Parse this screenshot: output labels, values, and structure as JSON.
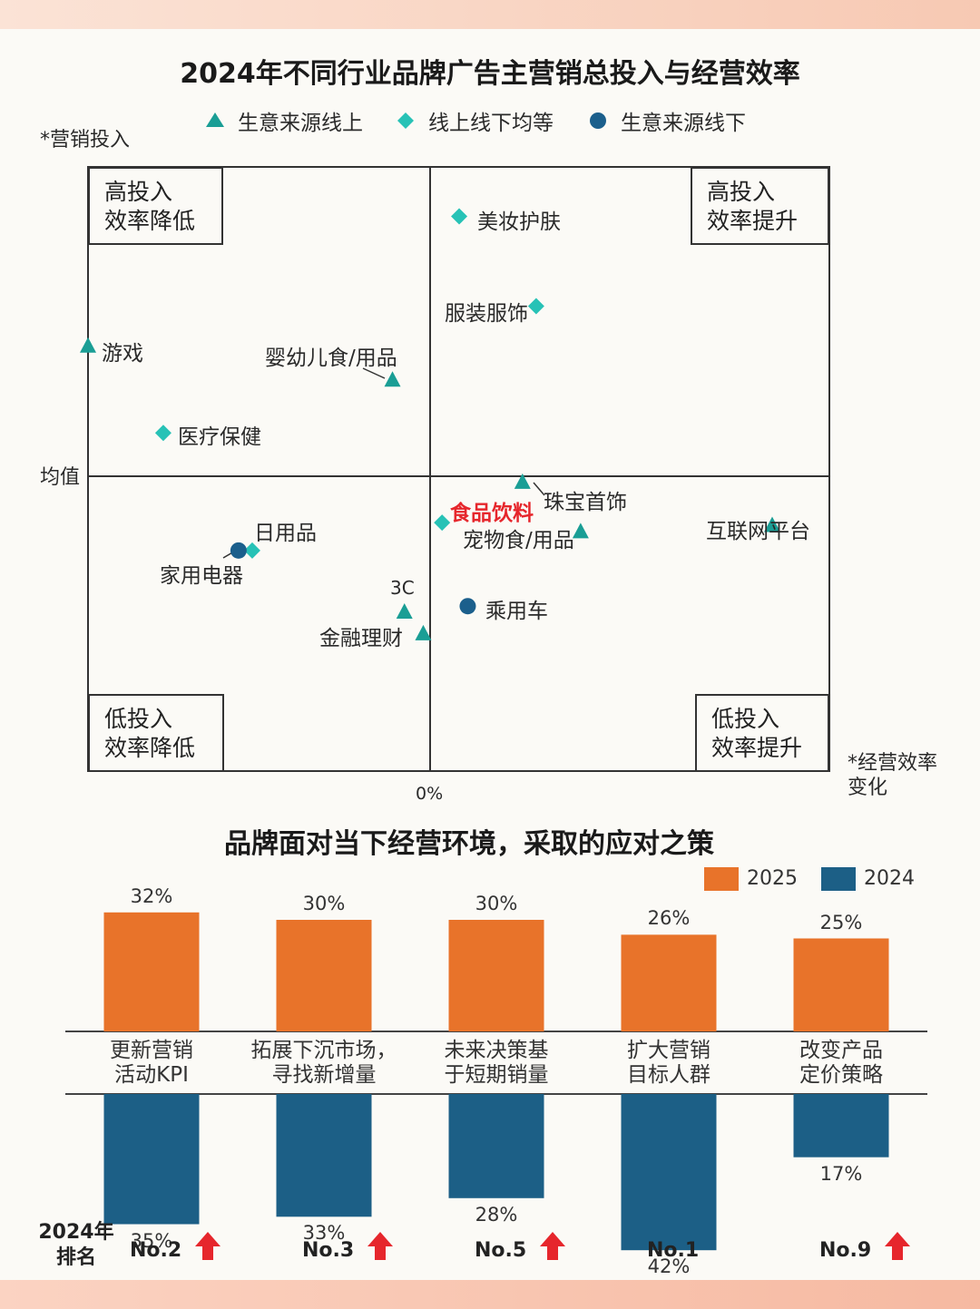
{
  "colors": {
    "teal": "#1a9e95",
    "cyan": "#27c2b6",
    "navy": "#1b5f8c",
    "orange": "#e8732a",
    "bar_blue": "#1c5f86",
    "red": "#e6262c"
  },
  "scatter": {
    "title": "2024年不同行业品牌广告主营销总投入与经营效率",
    "ylabel": "*营销投入",
    "xlabel": "*经营效率变化",
    "xlabel_line1": "*经营效率",
    "xlabel_line2": "变化",
    "y_mid_label": "均值",
    "x_zero_label": "0%",
    "legend": [
      {
        "name": "生意来源线上",
        "marker": "triangle",
        "color": "#1a9e95"
      },
      {
        "name": "线上线下均等",
        "marker": "diamond",
        "color": "#27c2b6"
      },
      {
        "name": "生意来源线下",
        "marker": "circle",
        "color": "#1b5f8c"
      }
    ],
    "quadrants": {
      "tl": [
        "高投入",
        "效率降低"
      ],
      "tr": [
        "高投入",
        "效率提升"
      ],
      "bl": [
        "低投入",
        "效率降低"
      ],
      "br": [
        "低投入",
        "效率提升"
      ]
    }
  },
  "bars": {
    "title": "品牌面对当下经营环境，采取的应对之策",
    "legend": [
      {
        "name": "2025",
        "color": "#e8732a"
      },
      {
        "name": "2024",
        "color": "#1c5f86"
      }
    ],
    "rank_title_1": "2024年",
    "rank_title_2": "排名"
  },
  "chart_data": [
    {
      "type": "scatter",
      "title": "2024年不同行业品牌广告主营销总投入与经营效率",
      "xlabel": "*经营效率变化",
      "ylabel": "*营销投入",
      "points": [
        {
          "name": "美妆护肤",
          "group": "线上线下均等",
          "x": 0.085,
          "y": 0.84
        },
        {
          "name": "服装服饰",
          "group": "线上线下均等",
          "x": 0.31,
          "y": 0.55
        },
        {
          "name": "游戏",
          "group": "生意来源线上",
          "x": -1.0,
          "y": 0.42
        },
        {
          "name": "婴幼儿食/用品",
          "group": "生意来源线上",
          "x": -0.11,
          "y": 0.31
        },
        {
          "name": "医疗保健",
          "group": "线上线下均等",
          "x": -0.78,
          "y": 0.14
        },
        {
          "name": "珠宝首饰",
          "group": "生意来源线上",
          "x": 0.27,
          "y": -0.02
        },
        {
          "name": "食品饮料",
          "group": "线上线下均等",
          "x": 0.035,
          "y": -0.15,
          "highlight": true
        },
        {
          "name": "宠物食/用品",
          "group": "生意来源线上",
          "x": 0.44,
          "y": -0.18
        },
        {
          "name": "互联网平台",
          "group": "生意来源线上",
          "x": 1.0,
          "y": -0.16
        },
        {
          "name": "日用品",
          "group": "线上线下均等",
          "x": -0.52,
          "y": -0.24
        },
        {
          "name": "家用电器",
          "group": "生意来源线下",
          "x": -0.56,
          "y": -0.24
        },
        {
          "name": "3C",
          "group": "生意来源线上",
          "x": -0.075,
          "y": -0.44
        },
        {
          "name": "乘用车",
          "group": "生意来源线下",
          "x": 0.11,
          "y": -0.42
        },
        {
          "name": "金融理财",
          "group": "生意来源线上",
          "x": -0.02,
          "y": -0.51
        }
      ]
    },
    {
      "type": "bar",
      "title": "品牌面对当下经营环境，采取的应对之策",
      "categories": [
        "更新营销\n活动KPI",
        "拓展下沉市场，\n寻找新增量",
        "未来决策基\n于短期销量",
        "扩大营销\n目标人群",
        "改变产品\n定价策略"
      ],
      "series": [
        {
          "name": "2025",
          "values": [
            32,
            30,
            30,
            26,
            25
          ]
        },
        {
          "name": "2024",
          "values": [
            35,
            33,
            28,
            42,
            17
          ]
        }
      ],
      "labels_2025": [
        "32%",
        "30%",
        "30%",
        "26%",
        "25%"
      ],
      "labels_2024": [
        "35%",
        "33%",
        "28%",
        "42%",
        "17%"
      ],
      "ranks_2024": [
        "No.2",
        "No.3",
        "No.5",
        "No.1",
        "No.9"
      ],
      "rank_up": [
        true,
        true,
        true,
        false,
        true
      ]
    }
  ]
}
